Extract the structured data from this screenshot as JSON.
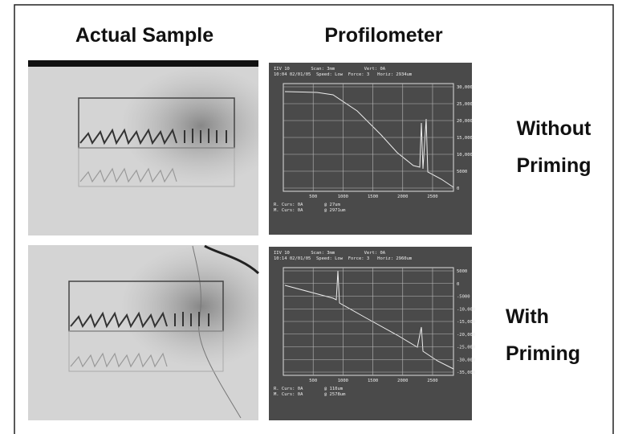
{
  "header": {
    "left": "Actual Sample",
    "right": "Profilometer"
  },
  "rows": [
    {
      "label": [
        "Without",
        "Priming"
      ],
      "profilometer": {
        "header": [
          "IIV 10        Scan: 3mm           Vert: 0A",
          "10:04 02/01/05  Speed: Low  Force: 3   Horiz: 2934um"
        ],
        "y_axis": [
          "30,000",
          "25,000",
          "20,000",
          "15,000",
          "10,000",
          "5000",
          "0"
        ],
        "x_axis": [
          "500",
          "1000",
          "1500",
          "2000",
          "2500"
        ],
        "cursors": [
          "R. Curs: 0A        @ 27um",
          "M. Curs: 0A        @ 2971um"
        ]
      }
    },
    {
      "label": [
        "With",
        "Priming"
      ],
      "profilometer": {
        "header": [
          "IIV 10        Scan: 3mm           Vert: 0A",
          "10:14 02/01/05  Speed: Low  Force: 3   Horiz: 2960um"
        ],
        "y_axis": [
          "5000",
          "0",
          "-5000",
          "-10,000",
          "-15,000",
          "-20,000",
          "-25,000",
          "-30,000",
          "-35,000"
        ],
        "x_axis": [
          "500",
          "1000",
          "1500",
          "2000",
          "2500"
        ],
        "cursors": [
          "R. Curs: 0A        @ 110um",
          "M. Curs: 0A        @ 2578um"
        ]
      }
    }
  ]
}
